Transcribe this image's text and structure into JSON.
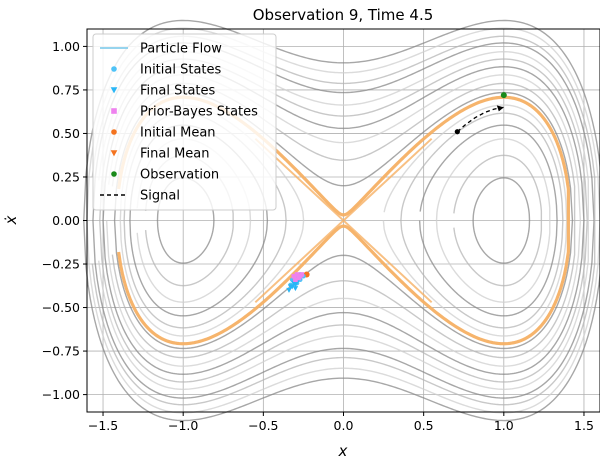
{
  "chart_data": {
    "type": "line",
    "title": "Observation 9, Time 4.5",
    "xlabel": "x",
    "ylabel": "ẋ",
    "xlim": [
      -1.6,
      1.6
    ],
    "ylim": [
      -1.1,
      1.1
    ],
    "grid": true,
    "legend_position": "top-left",
    "x_ticks": [
      -1.5,
      -1.0,
      -0.5,
      0.0,
      0.5,
      1.0,
      1.5
    ],
    "x_tick_labels": [
      "−1.5",
      "−1.0",
      "−0.5",
      "0.0",
      "0.5",
      "1.0",
      "1.5"
    ],
    "y_ticks": [
      -1.0,
      -0.75,
      -0.5,
      -0.25,
      0.0,
      0.25,
      0.5,
      0.75,
      1.0
    ],
    "y_tick_labels": [
      "−1.00",
      "−0.75",
      "−0.50",
      "−0.25",
      "0.00",
      "0.25",
      "0.50",
      "0.75",
      "1.00"
    ],
    "background_orbit_energies": [
      -0.22,
      -0.18,
      -0.14,
      -0.1,
      -0.06,
      -0.03,
      0.02,
      0.06,
      0.1,
      0.14,
      0.18,
      0.22,
      0.27,
      0.31,
      0.36,
      0.41
    ],
    "highlight_orbit_energy": 0.0,
    "legend": [
      {
        "label": "Particle Flow",
        "marker": "line",
        "color": "#87ceeb"
      },
      {
        "label": "Initial States",
        "marker": "circle",
        "color": "#4fc3f7"
      },
      {
        "label": "Final States",
        "marker": "triangle-down",
        "color": "#29b6f6"
      },
      {
        "label": "Prior-Bayes States",
        "marker": "square",
        "color": "#ee82ee"
      },
      {
        "label": "Initial Mean",
        "marker": "circle",
        "color": "#f4731f"
      },
      {
        "label": "Final Mean",
        "marker": "triangle-down",
        "color": "#f4731f"
      },
      {
        "label": "Observation",
        "marker": "circle",
        "color": "#1a8a1a"
      },
      {
        "label": "Signal",
        "marker": "dashed",
        "color": "#000000"
      }
    ],
    "series": [
      {
        "name": "Initial Mean",
        "x": [
          -0.23
        ],
        "y": [
          -0.31
        ]
      },
      {
        "name": "Final Mean",
        "x": [
          -0.27
        ],
        "y": [
          -0.33
        ]
      },
      {
        "name": "Observation",
        "x": [
          1.0
        ],
        "y": [
          0.72
        ]
      },
      {
        "name": "Signal",
        "x": [
          0.71,
          0.76,
          0.82,
          0.88,
          0.94,
          1.0
        ],
        "y": [
          0.51,
          0.55,
          0.59,
          0.62,
          0.64,
          0.65
        ]
      },
      {
        "name": "Initial States",
        "x": [
          -0.33,
          -0.31,
          -0.3,
          -0.29,
          -0.28,
          -0.27,
          -0.26,
          -0.25,
          -0.27,
          -0.3,
          -0.32
        ],
        "y": [
          -0.37,
          -0.35,
          -0.34,
          -0.36,
          -0.33,
          -0.34,
          -0.32,
          -0.32,
          -0.31,
          -0.32,
          -0.34
        ]
      },
      {
        "name": "Final States",
        "x": [
          -0.34,
          -0.32,
          -0.31,
          -0.3,
          -0.29,
          -0.28,
          -0.33,
          -0.3
        ],
        "y": [
          -0.4,
          -0.38,
          -0.36,
          -0.37,
          -0.35,
          -0.34,
          -0.38,
          -0.39
        ]
      },
      {
        "name": "Prior-Bayes States",
        "x": [
          -0.31,
          -0.29,
          -0.28,
          -0.26,
          -0.3,
          -0.27
        ],
        "y": [
          -0.32,
          -0.31,
          -0.33,
          -0.31,
          -0.34,
          -0.32
        ]
      }
    ]
  }
}
